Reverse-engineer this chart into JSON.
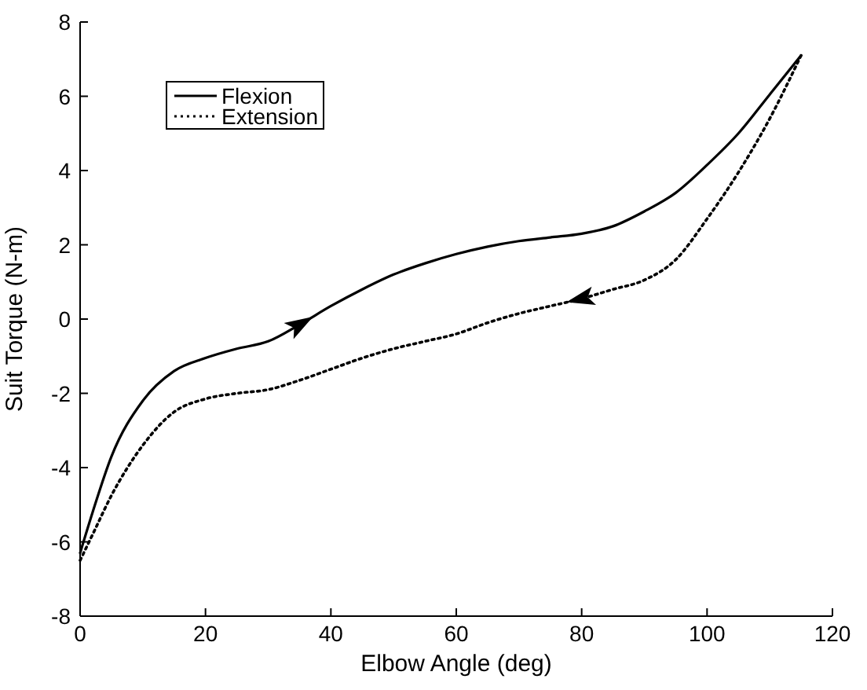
{
  "chart_data": {
    "type": "line",
    "xlabel": "Elbow Angle (deg)",
    "ylabel": "Suit Torque (N-m)",
    "xlim": [
      0,
      120
    ],
    "xticks": [
      0,
      20,
      40,
      60,
      80,
      100,
      120
    ],
    "ylim": [
      -8,
      8
    ],
    "yticks": [
      -8,
      -6,
      -4,
      -2,
      0,
      2,
      4,
      6,
      8
    ],
    "grid": false,
    "legend": "top left",
    "series": [
      {
        "name": "Flexion",
        "color": "#000000",
        "line_style": "solid",
        "x": [
          0,
          2,
          5,
          10,
          15,
          20,
          25,
          30,
          35,
          40,
          45,
          50,
          55,
          60,
          65,
          70,
          75,
          80,
          85,
          90,
          95,
          100,
          105,
          110,
          115
        ],
        "values": [
          -6.3,
          -5.2,
          -3.7,
          -2.2,
          -1.4,
          -1.05,
          -0.8,
          -0.6,
          -0.15,
          0.35,
          0.8,
          1.2,
          1.5,
          1.75,
          1.95,
          2.1,
          2.2,
          2.3,
          2.5,
          2.9,
          3.4,
          4.15,
          5.0,
          6.05,
          7.1
        ]
      },
      {
        "name": "Extension",
        "color": "#000000",
        "line_style": "dotted",
        "x": [
          0,
          2,
          5,
          10,
          15,
          20,
          25,
          30,
          35,
          40,
          45,
          50,
          55,
          60,
          65,
          70,
          75,
          80,
          85,
          90,
          95,
          100,
          105,
          110,
          115
        ],
        "values": [
          -6.5,
          -5.8,
          -4.75,
          -3.4,
          -2.5,
          -2.15,
          -2.0,
          -1.9,
          -1.65,
          -1.35,
          -1.05,
          -0.8,
          -0.6,
          -0.4,
          -0.1,
          0.15,
          0.35,
          0.55,
          0.8,
          1.05,
          1.6,
          2.7,
          3.95,
          5.4,
          7.1
        ]
      }
    ]
  }
}
